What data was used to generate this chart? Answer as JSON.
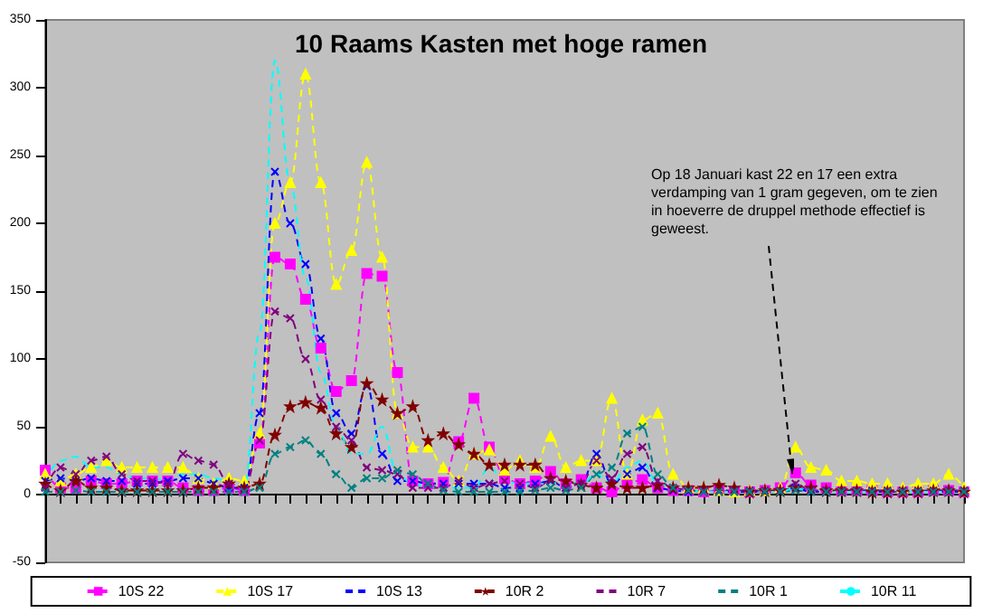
{
  "chart_data": {
    "type": "line",
    "title": "10 Raams Kasten met hoge ramen",
    "categories": [
      null,
      null,
      null,
      null,
      null,
      null,
      null,
      null,
      null,
      null,
      null,
      null,
      null,
      null,
      null,
      null,
      null,
      null,
      null,
      null,
      null,
      null,
      null,
      null,
      null,
      null,
      null,
      null,
      null,
      null,
      null,
      null,
      null,
      null,
      null,
      null,
      null,
      null,
      null,
      null,
      null,
      null,
      null,
      null,
      null,
      null,
      null,
      null,
      null,
      null,
      null,
      null,
      null,
      null,
      null,
      null,
      null,
      null,
      null,
      null,
      null
    ],
    "series": [
      {
        "name": "10S 22",
        "color": "#ff00ff",
        "marker": "square",
        "values": [
          18,
          5,
          5,
          10,
          8,
          8,
          10,
          10,
          10,
          5,
          3,
          3,
          5,
          3,
          38,
          175,
          170,
          144,
          108,
          76,
          84,
          163,
          161,
          90,
          10,
          8,
          9,
          39,
          71,
          35,
          12,
          8,
          10,
          17,
          8,
          11,
          5,
          2,
          8,
          11,
          5,
          3,
          3,
          2,
          3,
          2,
          2,
          3,
          5,
          16,
          7,
          5,
          3,
          3,
          3,
          2,
          2,
          2,
          3,
          3,
          2
        ]
      },
      {
        "name": "10S 17",
        "color": "#ffff00",
        "marker": "triangle",
        "values": [
          15,
          10,
          15,
          20,
          25,
          20,
          20,
          20,
          20,
          20,
          12,
          8,
          12,
          10,
          45,
          200,
          230,
          310,
          230,
          155,
          180,
          245,
          175,
          60,
          35,
          35,
          20,
          10,
          30,
          33,
          18,
          25,
          20,
          43,
          20,
          25,
          25,
          71,
          15,
          55,
          60,
          15,
          5,
          5,
          3,
          2,
          3,
          3,
          5,
          35,
          20,
          18,
          10,
          10,
          8,
          8,
          5,
          8,
          8,
          15,
          5
        ]
      },
      {
        "name": "10S 13",
        "color": "#0000ff",
        "marker": "cross",
        "values": [
          10,
          12,
          10,
          12,
          10,
          10,
          8,
          8,
          10,
          12,
          12,
          8,
          5,
          5,
          60,
          238,
          200,
          170,
          115,
          60,
          45,
          80,
          30,
          10,
          10,
          8,
          8,
          8,
          8,
          8,
          5,
          5,
          8,
          10,
          5,
          8,
          30,
          8,
          15,
          20,
          5,
          3,
          2,
          2,
          2,
          2,
          2,
          2,
          2,
          5,
          2,
          2,
          2,
          2,
          2,
          2,
          2,
          2,
          2,
          2,
          2
        ]
      },
      {
        "name": "10R 2",
        "color": "#800000",
        "marker": "star",
        "values": [
          8,
          3,
          10,
          5,
          5,
          3,
          3,
          3,
          3,
          3,
          5,
          5,
          8,
          5,
          8,
          44,
          65,
          68,
          64,
          45,
          35,
          82,
          70,
          60,
          65,
          40,
          45,
          37,
          30,
          22,
          22,
          22,
          22,
          12,
          10,
          7,
          5,
          8,
          5,
          5,
          7,
          5,
          5,
          5,
          7,
          5,
          2,
          3,
          3,
          5,
          5,
          3,
          3,
          3,
          2,
          2,
          2,
          2,
          3,
          3,
          2
        ]
      },
      {
        "name": "10R 7",
        "color": "#800080",
        "marker": "cross",
        "values": [
          5,
          20,
          15,
          25,
          28,
          15,
          10,
          10,
          8,
          30,
          25,
          22,
          8,
          3,
          40,
          135,
          130,
          100,
          70,
          50,
          40,
          20,
          18,
          15,
          5,
          5,
          5,
          10,
          5,
          8,
          10,
          8,
          5,
          10,
          5,
          8,
          25,
          12,
          30,
          35,
          10,
          5,
          3,
          3,
          3,
          3,
          3,
          3,
          3,
          8,
          3,
          3,
          3,
          3,
          3,
          3,
          3,
          3,
          3,
          3,
          3
        ]
      },
      {
        "name": "10R 1",
        "color": "#008080",
        "marker": "cross",
        "values": [
          2,
          2,
          3,
          2,
          2,
          2,
          2,
          2,
          2,
          2,
          2,
          2,
          2,
          2,
          5,
          30,
          35,
          40,
          30,
          15,
          5,
          12,
          12,
          18,
          15,
          8,
          3,
          2,
          2,
          2,
          2,
          2,
          3,
          5,
          3,
          5,
          15,
          20,
          45,
          50,
          15,
          5,
          3,
          2,
          2,
          2,
          2,
          2,
          2,
          3,
          2,
          2,
          2,
          2,
          2,
          2,
          2,
          2,
          2,
          2,
          2
        ]
      },
      {
        "name": "10R 11",
        "color": "#00ffff",
        "marker": "none",
        "values": [
          10,
          25,
          28,
          20,
          20,
          15,
          12,
          12,
          10,
          15,
          15,
          12,
          10,
          5,
          120,
          320,
          230,
          160,
          90,
          50,
          30,
          30,
          50,
          15,
          8,
          5,
          5,
          5,
          5,
          20,
          10,
          8,
          8,
          8,
          10,
          8,
          15,
          8,
          20,
          25,
          8,
          5,
          3,
          2,
          2,
          2,
          2,
          2,
          2,
          5,
          2,
          2,
          2,
          2,
          2,
          2,
          2,
          2,
          2,
          2,
          2
        ]
      }
    ],
    "ylim": [
      -50,
      350
    ],
    "yticks": [
      -50,
      0,
      50,
      100,
      150,
      200,
      250,
      300,
      350
    ],
    "legend": "bottom",
    "tick_labels": "y",
    "line_style": "dashed",
    "annotations": [
      "Op 18 Januari kast 22 en 17 een extra verdamping van 1 gram gegeven, om te zien in hoeverre de druppel methode effectief is geweest."
    ]
  }
}
